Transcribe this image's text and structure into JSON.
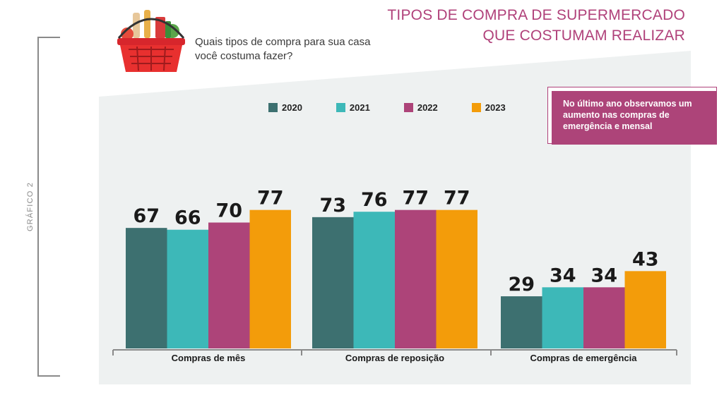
{
  "header": {
    "title_line1": "TIPOS DE COMPRA DE SUPERMERCADO",
    "title_line2": "QUE COSTUMAM REALIZAR",
    "question_line1": "Quais tipos de compra para sua casa",
    "question_line2": "você costuma fazer?",
    "side_label": "GRÁFICO 2"
  },
  "note": {
    "text": "No último ano observamos um aumento nas compras de emergência e mensal"
  },
  "colors": {
    "2020": "#3d7070",
    "2021": "#3db8b8",
    "2022": "#ad4479",
    "2023": "#f39c0a",
    "accent": "#b0417a",
    "panel": "#eef1f1"
  },
  "chart_data": {
    "type": "bar",
    "title": "TIPOS DE COMPRA DE SUPERMERCADO QUE COSTUMAM REALIZAR",
    "categories": [
      "Compras de mês",
      "Compras de reposição",
      "Compras de emergência"
    ],
    "series": [
      {
        "name": "2020",
        "values": [
          67,
          73,
          29
        ]
      },
      {
        "name": "2021",
        "values": [
          66,
          76,
          34
        ]
      },
      {
        "name": "2022",
        "values": [
          70,
          77,
          34
        ]
      },
      {
        "name": "2023",
        "values": [
          77,
          77,
          43
        ]
      }
    ],
    "ylim": [
      0,
      100
    ],
    "grid": false,
    "legend": "top",
    "data_labels": true
  }
}
